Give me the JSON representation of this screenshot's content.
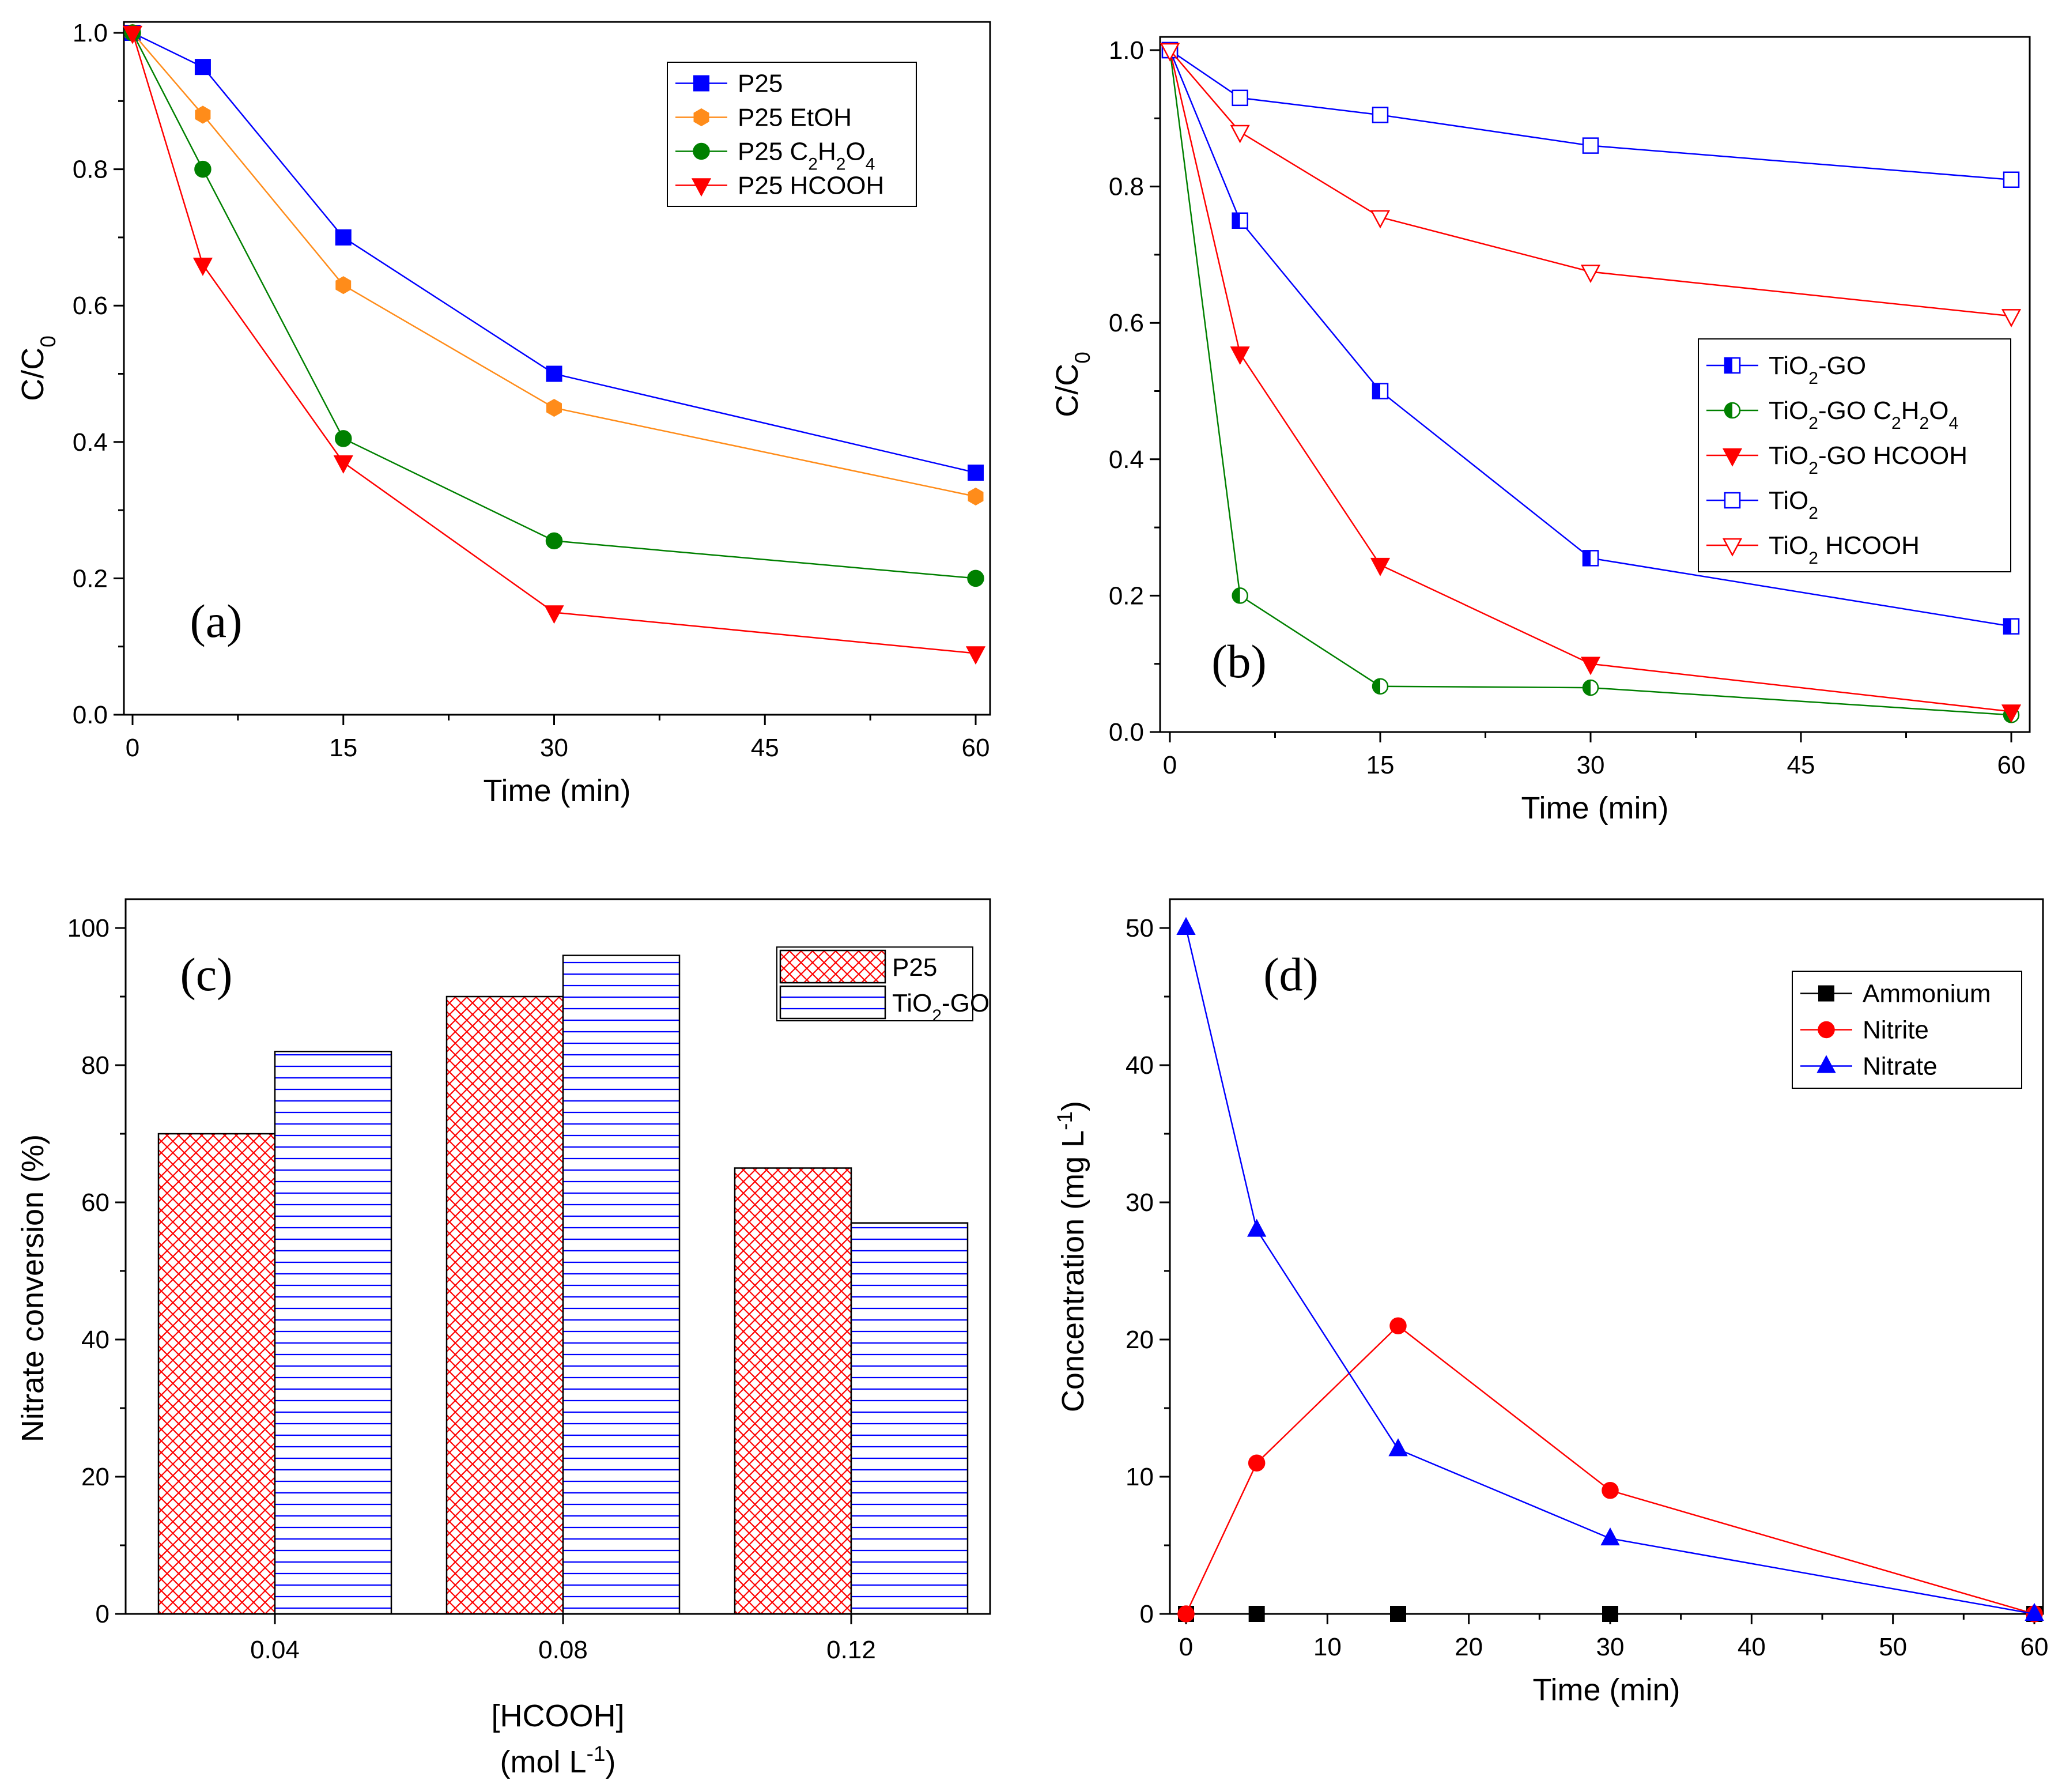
{
  "chart_data": [
    {
      "panel": "a",
      "type": "line",
      "tag": "(a)",
      "xlabel": "Time (min)",
      "ylabel": {
        "base": "C/C",
        "sub": "0"
      },
      "xlim": [
        0,
        60
      ],
      "ylim": [
        0,
        1.0
      ],
      "xticks": [
        "0",
        "15",
        "30",
        "45",
        "60"
      ],
      "yticks": [
        "0.0",
        "0.2",
        "0.4",
        "0.6",
        "0.8",
        "1.0"
      ],
      "legend_position": "top-right",
      "series": [
        {
          "name": "P25",
          "label": [
            {
              "t": "P25"
            }
          ],
          "color": "#0000ff",
          "marker": "square-filled",
          "x": [
            0,
            5,
            15,
            30,
            60
          ],
          "y": [
            1.0,
            0.95,
            0.7,
            0.5,
            0.355
          ]
        },
        {
          "name": "P25 EtOH",
          "label": [
            {
              "t": "P25 EtOH"
            }
          ],
          "color": "#ff8c1a",
          "marker": "hexagon-filled",
          "x": [
            0,
            5,
            15,
            30,
            60
          ],
          "y": [
            1.0,
            0.88,
            0.63,
            0.45,
            0.32
          ]
        },
        {
          "name": "P25 C2H2O4",
          "label": [
            {
              "t": "P25 C"
            },
            {
              "t": "2",
              "sub": true
            },
            {
              "t": "H"
            },
            {
              "t": "2",
              "sub": true
            },
            {
              "t": "O"
            },
            {
              "t": "4",
              "sub": true
            }
          ],
          "color": "#008000",
          "marker": "circle-filled",
          "x": [
            0,
            5,
            15,
            30,
            60
          ],
          "y": [
            1.0,
            0.8,
            0.405,
            0.255,
            0.2
          ]
        },
        {
          "name": "P25 HCOOH",
          "label": [
            {
              "t": "P25 HCOOH"
            }
          ],
          "color": "#ff0000",
          "marker": "triangle-down-filled",
          "x": [
            0,
            5,
            15,
            30,
            60
          ],
          "y": [
            1.0,
            0.66,
            0.37,
            0.15,
            0.09
          ]
        }
      ]
    },
    {
      "panel": "b",
      "type": "line",
      "tag": "(b)",
      "xlabel": "Time (min)",
      "ylabel": {
        "base": "C/C",
        "sub": "0"
      },
      "xlim": [
        0,
        60
      ],
      "ylim": [
        0,
        1.0
      ],
      "xticks": [
        "0",
        "15",
        "30",
        "45",
        "60"
      ],
      "yticks": [
        "0.0",
        "0.2",
        "0.4",
        "0.6",
        "0.8",
        "1.0"
      ],
      "legend_position": "middle-right",
      "series": [
        {
          "name": "TiO2-GO",
          "label": [
            {
              "t": "TiO"
            },
            {
              "t": "2",
              "sub": true
            },
            {
              "t": "-GO"
            }
          ],
          "color": "#0000ff",
          "marker": "square-half",
          "x": [
            0,
            5,
            15,
            30,
            60
          ],
          "y": [
            1.0,
            0.75,
            0.5,
            0.255,
            0.155
          ]
        },
        {
          "name": "TiO2-GO C2H2O4",
          "label": [
            {
              "t": "TiO"
            },
            {
              "t": "2",
              "sub": true
            },
            {
              "t": "-GO C"
            },
            {
              "t": "2",
              "sub": true
            },
            {
              "t": "H"
            },
            {
              "t": "2",
              "sub": true
            },
            {
              "t": "O"
            },
            {
              "t": "4",
              "sub": true
            }
          ],
          "color": "#008000",
          "marker": "circle-half",
          "x": [
            0,
            5,
            15,
            30,
            60
          ],
          "y": [
            1.0,
            0.2,
            0.067,
            0.065,
            0.025
          ]
        },
        {
          "name": "TiO2-GO HCOOH",
          "label": [
            {
              "t": "TiO"
            },
            {
              "t": "2",
              "sub": true
            },
            {
              "t": "-GO HCOOH"
            }
          ],
          "color": "#ff0000",
          "marker": "triangle-down-filled",
          "x": [
            0,
            5,
            15,
            30,
            60
          ],
          "y": [
            1.0,
            0.555,
            0.245,
            0.1,
            0.03
          ]
        },
        {
          "name": "TiO2",
          "label": [
            {
              "t": "TiO"
            },
            {
              "t": "2",
              "sub": true
            }
          ],
          "color": "#0000ff",
          "marker": "square-open",
          "x": [
            0,
            5,
            15,
            30,
            60
          ],
          "y": [
            1.0,
            0.93,
            0.905,
            0.86,
            0.81
          ]
        },
        {
          "name": "TiO2 HCOOH",
          "label": [
            {
              "t": "TiO"
            },
            {
              "t": "2",
              "sub": true
            },
            {
              "t": " HCOOH"
            }
          ],
          "color": "#ff0000",
          "marker": "triangle-down-open",
          "x": [
            0,
            5,
            15,
            30,
            60
          ],
          "y": [
            1.0,
            0.88,
            0.755,
            0.675,
            0.61
          ]
        }
      ]
    },
    {
      "panel": "c",
      "type": "bar",
      "tag": "(c)",
      "xlabel": {
        "line1": "[HCOOH]",
        "line2_base": "(mol L",
        "line2_sup": "-1",
        "line2_end": ")"
      },
      "ylabel": "Nitrate conversion (%)",
      "categories": [
        "0.04",
        "0.08",
        "0.12"
      ],
      "ylim": [
        0,
        100
      ],
      "yticks": [
        "0",
        "20",
        "40",
        "60",
        "80",
        "100"
      ],
      "legend_position": "top-right",
      "series": [
        {
          "name": "P25",
          "label": [
            {
              "t": "P25"
            }
          ],
          "pattern": "crosshatch",
          "color": "#ff0000",
          "values": [
            70,
            90,
            65
          ]
        },
        {
          "name": "TiO2-GO",
          "label": [
            {
              "t": "TiO"
            },
            {
              "t": "2",
              "sub": true
            },
            {
              "t": "-GO"
            }
          ],
          "pattern": "horizontal-lines",
          "color": "#0000ff",
          "values": [
            82,
            96,
            57
          ]
        }
      ]
    },
    {
      "panel": "d",
      "type": "line",
      "tag": "(d)",
      "xlabel": "Time (min)",
      "ylabel": {
        "base": "Concentration (mg L",
        "sup": "-1",
        "end": ")"
      },
      "xlim": [
        0,
        60
      ],
      "ylim": [
        0,
        50
      ],
      "xticks": [
        "0",
        "10",
        "20",
        "30",
        "40",
        "50",
        "60"
      ],
      "yticks": [
        "0",
        "10",
        "20",
        "30",
        "40",
        "50"
      ],
      "legend_position": "top-right",
      "series": [
        {
          "name": "Ammonium",
          "label": [
            {
              "t": "Ammonium"
            }
          ],
          "color": "#000000",
          "marker": "square-filled",
          "x": [
            0,
            5,
            15,
            30,
            60
          ],
          "y": [
            0,
            0,
            0,
            0,
            0
          ]
        },
        {
          "name": "Nitrite",
          "label": [
            {
              "t": "Nitrite"
            }
          ],
          "color": "#ff0000",
          "marker": "circle-filled",
          "x": [
            0,
            5,
            15,
            30,
            60
          ],
          "y": [
            0,
            11,
            21,
            9,
            0
          ]
        },
        {
          "name": "Nitrate",
          "label": [
            {
              "t": "Nitrate"
            }
          ],
          "color": "#0000ff",
          "marker": "triangle-up-filled",
          "x": [
            0,
            5,
            15,
            30,
            60
          ],
          "y": [
            50,
            28,
            12,
            5.5,
            0
          ]
        }
      ]
    }
  ]
}
